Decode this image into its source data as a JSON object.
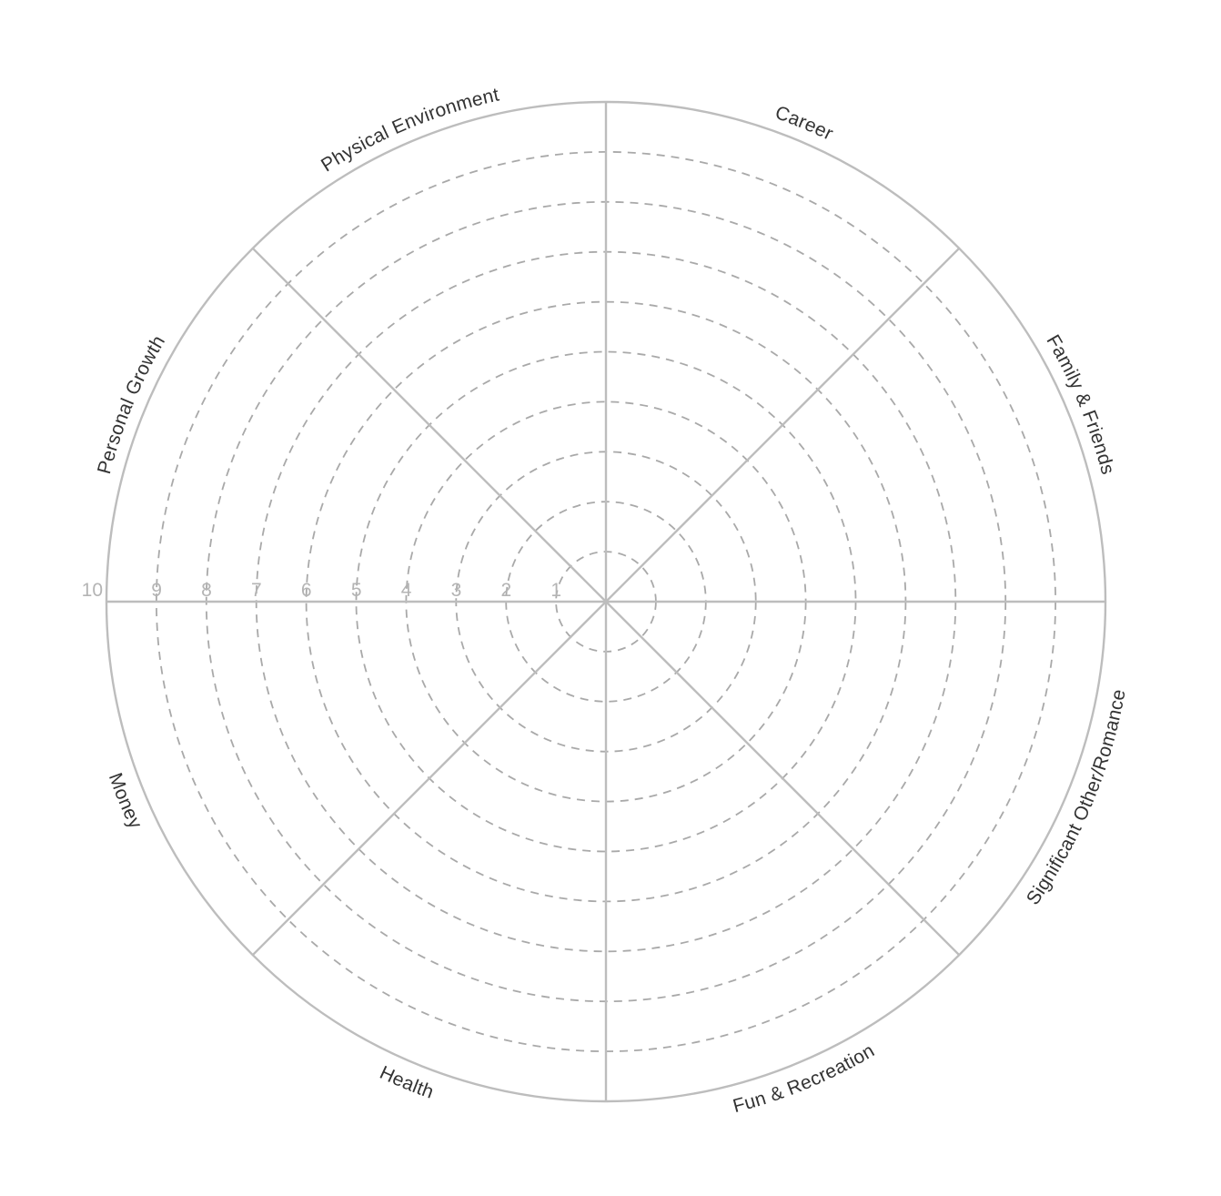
{
  "wheel": {
    "categories": [
      "Career",
      "Family & Friends",
      "Significant  Other/Romance",
      "Fun & Recreation",
      "Health",
      "Money",
      "Personal Growth",
      "Physical Environment"
    ],
    "scale": [
      "1",
      "2",
      "3",
      "4",
      "5",
      "6",
      "7",
      "8",
      "9",
      "10"
    ],
    "colors": {
      "outline": "#bdbdbd",
      "rings": "#a9a9a9",
      "scale_text": "#b4b4b4",
      "category_text": "#333333"
    }
  }
}
